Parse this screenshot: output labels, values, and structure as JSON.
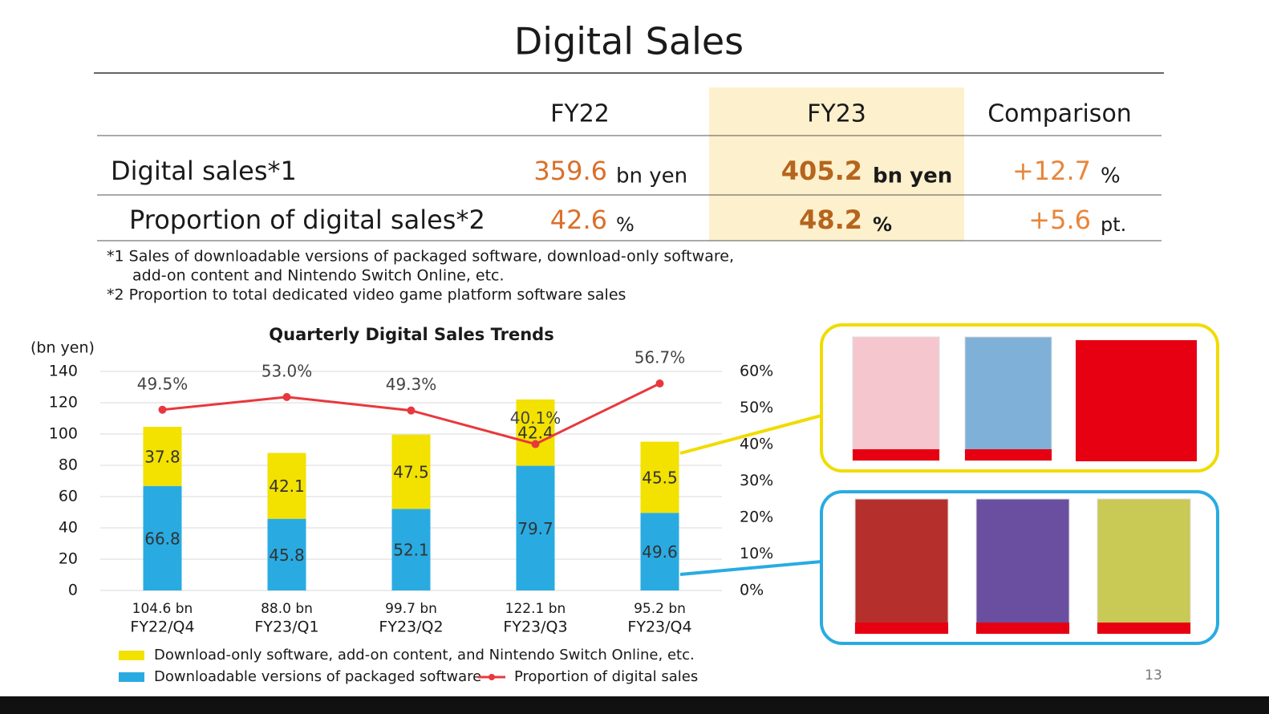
{
  "title": "Digital Sales",
  "table": {
    "headers": [
      "FY22",
      "FY23",
      "Comparison"
    ],
    "rows": [
      [
        "Digital sales*1",
        "359.6",
        "bn yen",
        "405.2",
        "bn yen",
        "+12.7",
        "%"
      ],
      [
        "Proportion of digital sales*2",
        "42.6",
        "%",
        "48.2",
        "%",
        "+5.6",
        "pt."
      ]
    ]
  },
  "notes": [
    "*1 Sales of downloadable versions of packaged software, download-only software,",
    "add-on content and Nintendo Switch Online, etc.",
    "*2 Proportion to total dedicated video game platform software sales"
  ],
  "chart_data": {
    "type": "bar",
    "stacked": true,
    "title": "Quarterly Digital Sales Trends",
    "y_label": "(bn yen)",
    "categories": [
      "FY22/Q4",
      "FY23/Q1",
      "FY23/Q2",
      "FY23/Q3",
      "FY23/Q4"
    ],
    "category_totals": [
      "104.6 bn",
      "88.0 bn",
      "99.7 bn",
      "122.1 bn",
      "95.2 bn"
    ],
    "series": [
      {
        "name": "Downloadable versions of packaged software",
        "color": "#29abe2",
        "values": [
          66.8,
          45.8,
          52.1,
          79.7,
          49.6
        ]
      },
      {
        "name": "Download-only software, add-on content, and Nintendo Switch Online, etc.",
        "color": "#f3e100",
        "values": [
          37.8,
          42.1,
          47.5,
          42.4,
          45.5
        ]
      },
      {
        "name": "Proportion of digital sales",
        "color": "#e8383d",
        "type": "line",
        "axis": "y2",
        "values": [
          49.5,
          53.0,
          49.3,
          40.1,
          56.7
        ],
        "value_labels": [
          "49.5%",
          "53.0%",
          "49.3%",
          "40.1%",
          "56.7%"
        ]
      }
    ],
    "ylim": [
      0,
      140
    ],
    "yticks": [
      0,
      20,
      40,
      60,
      80,
      100,
      120,
      140
    ],
    "y2lim": [
      0,
      60
    ],
    "y2ticks": [
      {
        "value": 0,
        "label": "0%"
      },
      {
        "value": 10,
        "label": "10%"
      },
      {
        "value": 20,
        "label": "20%"
      },
      {
        "value": 30,
        "label": "30%"
      },
      {
        "value": 40,
        "label": "40%"
      },
      {
        "value": 50,
        "label": "50%"
      },
      {
        "value": 60,
        "label": "60%"
      }
    ],
    "grid": true
  },
  "page_number": "13"
}
